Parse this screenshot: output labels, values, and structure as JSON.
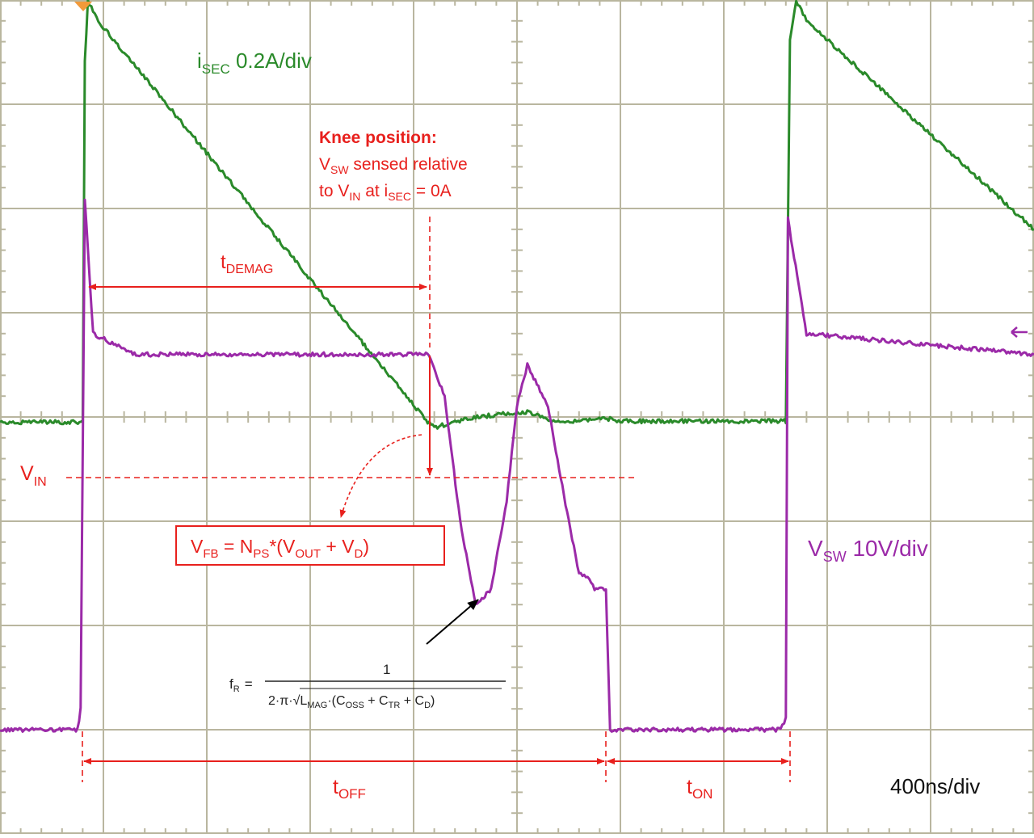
{
  "chart_data": {
    "type": "line",
    "title": "",
    "xlabel": "",
    "ylabel": "",
    "time_per_div": "400ns/div",
    "xlim_div": [
      0,
      10
    ],
    "ylim_div": [
      0,
      8
    ],
    "grid": true,
    "series": [
      {
        "name": "iSEC 0.2A/div",
        "color": "#2a8a2a",
        "x_div": [
          0,
          0.8,
          0.82,
          0.85,
          0.95,
          4.12,
          4.2,
          4.6,
          5.1,
          5.4,
          5.75,
          5.9,
          6.0,
          7.6,
          7.64,
          7.7,
          7.8,
          10.0
        ],
        "y_div": [
          3.95,
          3.95,
          7.4,
          8.0,
          7.8,
          3.97,
          3.9,
          4.0,
          4.05,
          3.95,
          3.98,
          3.98,
          3.96,
          3.96,
          7.6,
          8.0,
          7.8,
          5.8
        ]
      },
      {
        "name": "VSW 10V/div",
        "color": "#9b2aa8",
        "x_div": [
          0,
          0.75,
          0.78,
          0.82,
          0.9,
          1.3,
          4.15,
          4.3,
          4.45,
          4.6,
          4.75,
          4.9,
          5.0,
          5.1,
          5.3,
          5.5,
          5.6,
          5.7,
          5.75,
          5.86,
          5.9,
          7.55,
          7.6,
          7.62,
          7.8,
          10.0
        ],
        "y_div": [
          1.0,
          1.0,
          1.2,
          6.1,
          4.8,
          4.6,
          4.6,
          4.2,
          3.0,
          2.2,
          2.35,
          3.2,
          4.1,
          4.5,
          4.1,
          3.0,
          2.5,
          2.45,
          2.35,
          2.35,
          1.0,
          1.0,
          1.1,
          5.9,
          4.8,
          4.6
        ]
      }
    ],
    "annotations": {
      "isec_label": {
        "pre": "i",
        "sub": "SEC",
        "post": " 0.2A/div"
      },
      "vsw_label": {
        "pre": "V",
        "sub": "SW",
        "post": " 10V/div"
      },
      "knee_title": "Knee position:",
      "knee_line2": {
        "pre": "V",
        "sub": "SW",
        "post": " sensed relative"
      },
      "knee_line3": {
        "pre": "to V",
        "sub": "IN",
        "mid": " at i",
        "sub2": "SEC",
        "post": " = 0A"
      },
      "tdemag": {
        "pre": "t",
        "sub": "DEMAG"
      },
      "vin": {
        "pre": "V",
        "sub": "IN"
      },
      "vfb_box": {
        "p1": "V",
        "s1": "FB",
        "p2": " = N",
        "s2": "PS",
        "p3": "*(V",
        "s3": "OUT",
        "p4": " + V",
        "s4": "D",
        "p5": ")"
      },
      "toff": {
        "pre": "t",
        "sub": "OFF"
      },
      "ton": {
        "pre": "t",
        "sub": "ON"
      },
      "formula": {
        "lhs": "f",
        "lhs_sub": "R",
        "eq": "=",
        "numerator": "1",
        "den_pre": "2·π·√",
        "den_l": "L",
        "den_l_sub": "MAG",
        "den_mid": "·(C",
        "c1_sub": "OSS",
        "plus1": " + C",
        "c2_sub": "TR",
        "plus2": " + C",
        "c3_sub": "D",
        "close": ")"
      }
    },
    "colors": {
      "grid": "#b9b69f",
      "annotation": "#e8201d",
      "green_trace": "#2a8a2a",
      "purple_trace": "#9b2aa8"
    }
  }
}
